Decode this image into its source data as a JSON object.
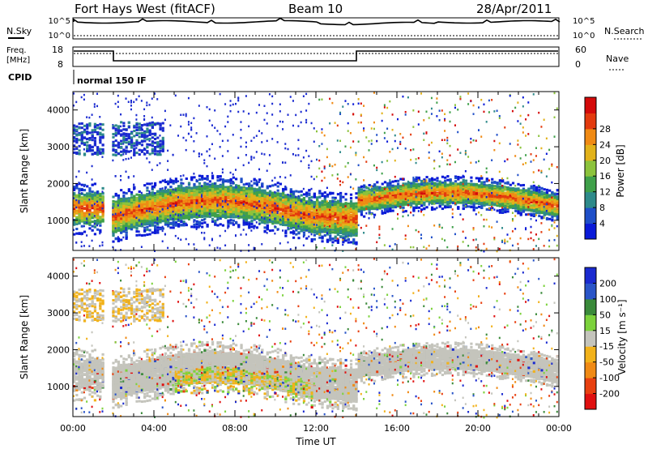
{
  "header": {
    "station_title": "Fort Hays West (fitACF)",
    "beam": "Beam 10",
    "date": "28/Apr/2011"
  },
  "noise_panel": {
    "left_label": "N.Sky",
    "right_label": "N.Search",
    "left_ticks": [
      "10^5",
      "10^0"
    ],
    "right_ticks": [
      "10^5",
      "10^0"
    ]
  },
  "freq_panel": {
    "left_label_1": "Freq.",
    "left_label_2": "[MHz]",
    "right_label": "Nave",
    "left_ticks": [
      "18",
      "8"
    ],
    "right_ticks": [
      "60",
      "0"
    ]
  },
  "cpid_panel": {
    "label": "CPID",
    "program": "normal 150 IF"
  },
  "chart_data": [
    {
      "type": "heatmap",
      "name": "power",
      "xlabel": "",
      "ylabel": "Slant Range [km]",
      "y_ticks": [
        "1000",
        "2000",
        "3000",
        "4000"
      ],
      "colorbar_label": "Power [dB]",
      "colorbar_ticks": [
        "4",
        "8",
        "12",
        "16",
        "20",
        "24",
        "28"
      ],
      "colorbar_colors": [
        "#0a1ad8",
        "#1f4fc8",
        "#2e8a8a",
        "#3fa04a",
        "#8cc33c",
        "#e2b21a",
        "#f08a14",
        "#e33a0e",
        "#d40a0a"
      ],
      "ylim": [
        180,
        4500
      ],
      "xlim": [
        "00:00",
        "24:00"
      ]
    },
    {
      "type": "heatmap",
      "name": "velocity",
      "xlabel": "Time UT",
      "ylabel": "Slant Range [km]",
      "y_ticks": [
        "1000",
        "2000",
        "3000",
        "4000"
      ],
      "x_ticks": [
        "00:00",
        "04:00",
        "08:00",
        "12:00",
        "16:00",
        "20:00",
        "00:00"
      ],
      "colorbar_label": "Velocity [m s⁻¹]",
      "colorbar_ticks": [
        "200",
        "100",
        "50",
        "15",
        "-15",
        "-50",
        "-100",
        "-200"
      ],
      "colorbar_colors": [
        "#1a2ad0",
        "#2a55c8",
        "#3a8a3a",
        "#7cd23c",
        "#c4c4bc",
        "#f2b21a",
        "#f08a14",
        "#e84010",
        "#e01010"
      ],
      "ylim": [
        180,
        4500
      ],
      "xlim": [
        "00:00",
        "24:00"
      ]
    }
  ]
}
